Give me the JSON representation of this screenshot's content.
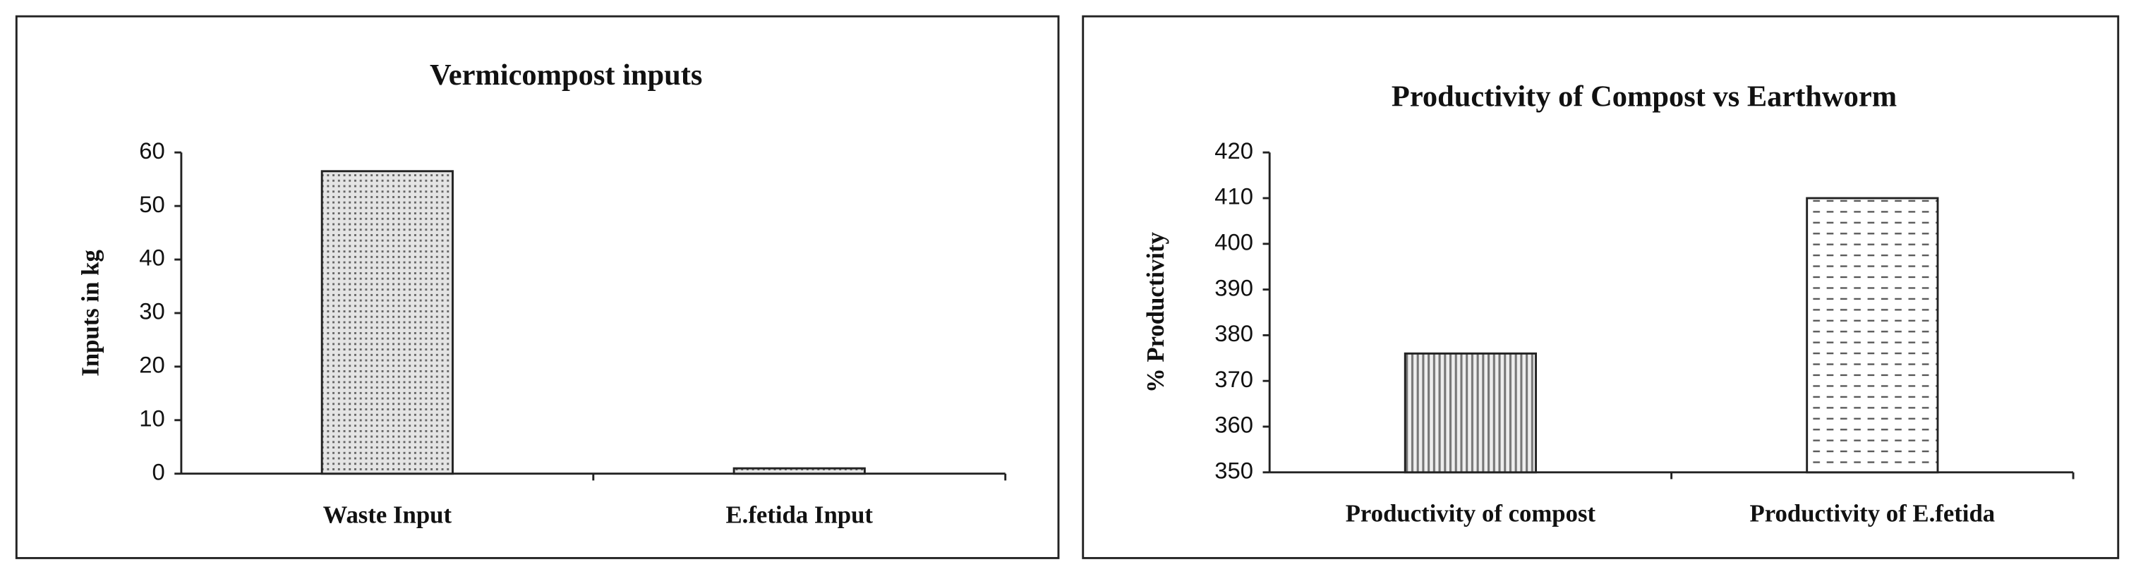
{
  "chart_data": [
    {
      "type": "bar",
      "title": "Vermicompost inputs",
      "y_label": "Inputs in kg",
      "categories": [
        "Waste Input",
        "E.fetida Input"
      ],
      "values": [
        56.5,
        1
      ],
      "color": "#222222",
      "ylim": [
        0,
        60
      ],
      "yticks": [
        0,
        10,
        20,
        30,
        40,
        50,
        60
      ]
    },
    {
      "type": "bar",
      "title": "Productivity of Compost vs Earthworm",
      "y_label": "% Productivity",
      "categories": [
        "Productivity of compost",
        "Productivity of E.fetida"
      ],
      "values": [
        376,
        410
      ],
      "color": "#222222",
      "ylim": [
        350,
        420
      ],
      "yticks": [
        350,
        360,
        370,
        380,
        390,
        400,
        410,
        420
      ]
    }
  ]
}
